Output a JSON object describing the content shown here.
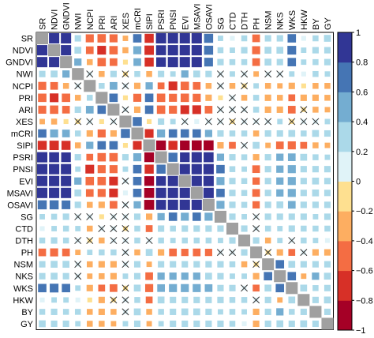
{
  "chart_data": {
    "type": "heatmap",
    "title": "",
    "variables": [
      "SR",
      "NDVI",
      "GNDVI",
      "NWI",
      "NCPI",
      "PRI",
      "ARI",
      "XES",
      "mCRI",
      "SIPI",
      "PSRI",
      "PNSI",
      "EVI",
      "MSAVI",
      "OSAVI",
      "SG",
      "CTD",
      "DTH",
      "PH",
      "NSM",
      "NKS",
      "WKS",
      "HKW",
      "BY",
      "GY"
    ],
    "colorbar": {
      "ticks": [
        1,
        0.8,
        0.6,
        0.4,
        0.2,
        0,
        -0.2,
        -0.4,
        -0.6,
        -0.8,
        -1
      ],
      "tick_labels": [
        "1",
        "0.8",
        "0.6",
        "0.4",
        "0.2",
        "0",
        "−0.2",
        "−0.4",
        "−0.6",
        "−0.8",
        "−1"
      ],
      "colors": [
        "#A50026",
        "#D73027",
        "#F46D43",
        "#FDAE61",
        "#FEE090",
        "#E0F3F8",
        "#ABD9E9",
        "#74ADD1",
        "#4575B4",
        "#313695"
      ]
    },
    "insignificant_marker": "cross",
    "upper_triangle_matrix": [
      [
        0.95,
        0.9,
        0.35,
        -0.55,
        -0.6,
        -0.55,
        -0.25,
        0.6,
        -0.7,
        0.9,
        0.95,
        0.92,
        0.92,
        0.7,
        0.25,
        0.2,
        0.3,
        -0.5,
        0.35,
        0.35,
        0.6,
        0.2,
        0.3,
        0.4
      ],
      [
        0.9,
        0.4,
        -0.5,
        -0.65,
        -0.6,
        -0.3,
        0.55,
        -0.75,
        0.85,
        0.95,
        0.93,
        0.93,
        0.7,
        0.3,
        0.25,
        0.35,
        -0.55,
        0.4,
        0.4,
        0.65,
        0.25,
        0.35,
        0.35
      ],
      [
        0.45,
        -0.3,
        -0.6,
        -0.5,
        -0.2,
        0.5,
        -0.7,
        0.8,
        0.9,
        0.92,
        0.9,
        0.65,
        0.35,
        0.3,
        0.3,
        -0.5,
        0.4,
        0.35,
        0.6,
        0.25,
        0.3,
        0.35
      ],
      [
        0.1,
        -0.3,
        0.35,
        -0.1,
        0.3,
        -0.3,
        0.35,
        0.25,
        0.45,
        0.4,
        0.35,
        0.1,
        0.25,
        0.1,
        -0.25,
        0.1,
        0.15,
        0.25,
        0.2,
        0.3,
        0.25
      ],
      [
        0.3,
        0.5,
        0.15,
        -0.35,
        0.45,
        -0.4,
        -0.65,
        -0.6,
        -0.5,
        -0.3,
        0.1,
        -0.3,
        -0.1,
        0.25,
        -0.3,
        -0.25,
        -0.35,
        -0.2,
        -0.3,
        -0.3
      ],
      [
        0.6,
        -0.2,
        -0.55,
        0.6,
        -0.6,
        -0.55,
        -0.6,
        -0.55,
        -0.35,
        -0.2,
        0.1,
        -0.3,
        0.3,
        -0.35,
        -0.3,
        -0.4,
        -0.35,
        -0.35,
        -0.3
      ],
      [
        0.1,
        -0.35,
        0.6,
        -0.6,
        -0.55,
        -0.65,
        -0.65,
        -0.5,
        0.1,
        0.1,
        0.1,
        0.3,
        -0.35,
        -0.35,
        -0.5,
        -0.1,
        -0.3,
        -0.25
      ],
      [
        0.7,
        -0.2,
        0.35,
        0.25,
        0.1,
        0.2,
        0.1,
        0.1,
        -0.1,
        0.1,
        0.15,
        0.1,
        0.25,
        -0.1,
        0.1,
        0.1,
        0.25
      ],
      [
        -0.65,
        0.55,
        0.6,
        0.6,
        0.6,
        0.45,
        0.35,
        0.3,
        0.3,
        -0.3,
        0.35,
        0.35,
        0.4,
        0.3,
        0.4,
        0.35
      ],
      [
        -0.8,
        -0.7,
        -0.8,
        -0.85,
        -0.85,
        -0.35,
        -0.4,
        0.1,
        0.4,
        -0.25,
        -0.5,
        -0.55,
        -0.4,
        -0.3,
        -0.25
      ],
      [
        0.7,
        0.8,
        0.9,
        0.85,
        0.45,
        0.35,
        0.3,
        -0.35,
        0.35,
        0.45,
        0.5,
        0.4,
        0.3,
        0.25
      ],
      [
        0.95,
        0.92,
        0.92,
        0.6,
        0.3,
        0.25,
        -0.5,
        0.35,
        0.45,
        0.55,
        0.35,
        0.35,
        0.35
      ],
      [
        0.95,
        0.95,
        0.55,
        0.35,
        0.3,
        -0.45,
        0.35,
        0.45,
        0.55,
        0.35,
        0.4,
        0.35
      ],
      [
        0.95,
        0.6,
        0.35,
        0.3,
        -0.5,
        0.35,
        0.45,
        0.55,
        0.35,
        0.4,
        0.35
      ],
      [
        0.55,
        0.35,
        0.3,
        -0.45,
        0.35,
        0.4,
        0.5,
        0.35,
        0.35,
        0.35
      ],
      [
        0.35,
        0.25,
        0.1,
        0.35,
        0.35,
        0.35,
        0.35,
        0.25,
        0.35
      ],
      [
        0.35,
        0.1,
        0.3,
        0.25,
        0.35,
        0.3,
        0.3,
        0.3
      ],
      [
        0.35,
        -0.3,
        0.25,
        0.1,
        0.3,
        0.25,
        0.2
      ],
      [
        -0.1,
        -0.35,
        -0.4,
        0.1,
        -0.35,
        -0.35
      ],
      [
        0.6,
        0.4,
        0.35,
        0.35,
        0.35
      ],
      [
        0.6,
        -0.25,
        0.45,
        0.4
      ],
      [
        0.4,
        0.3,
        0.35
      ],
      [
        0.35,
        0.4
      ],
      [
        0.35
      ]
    ]
  }
}
